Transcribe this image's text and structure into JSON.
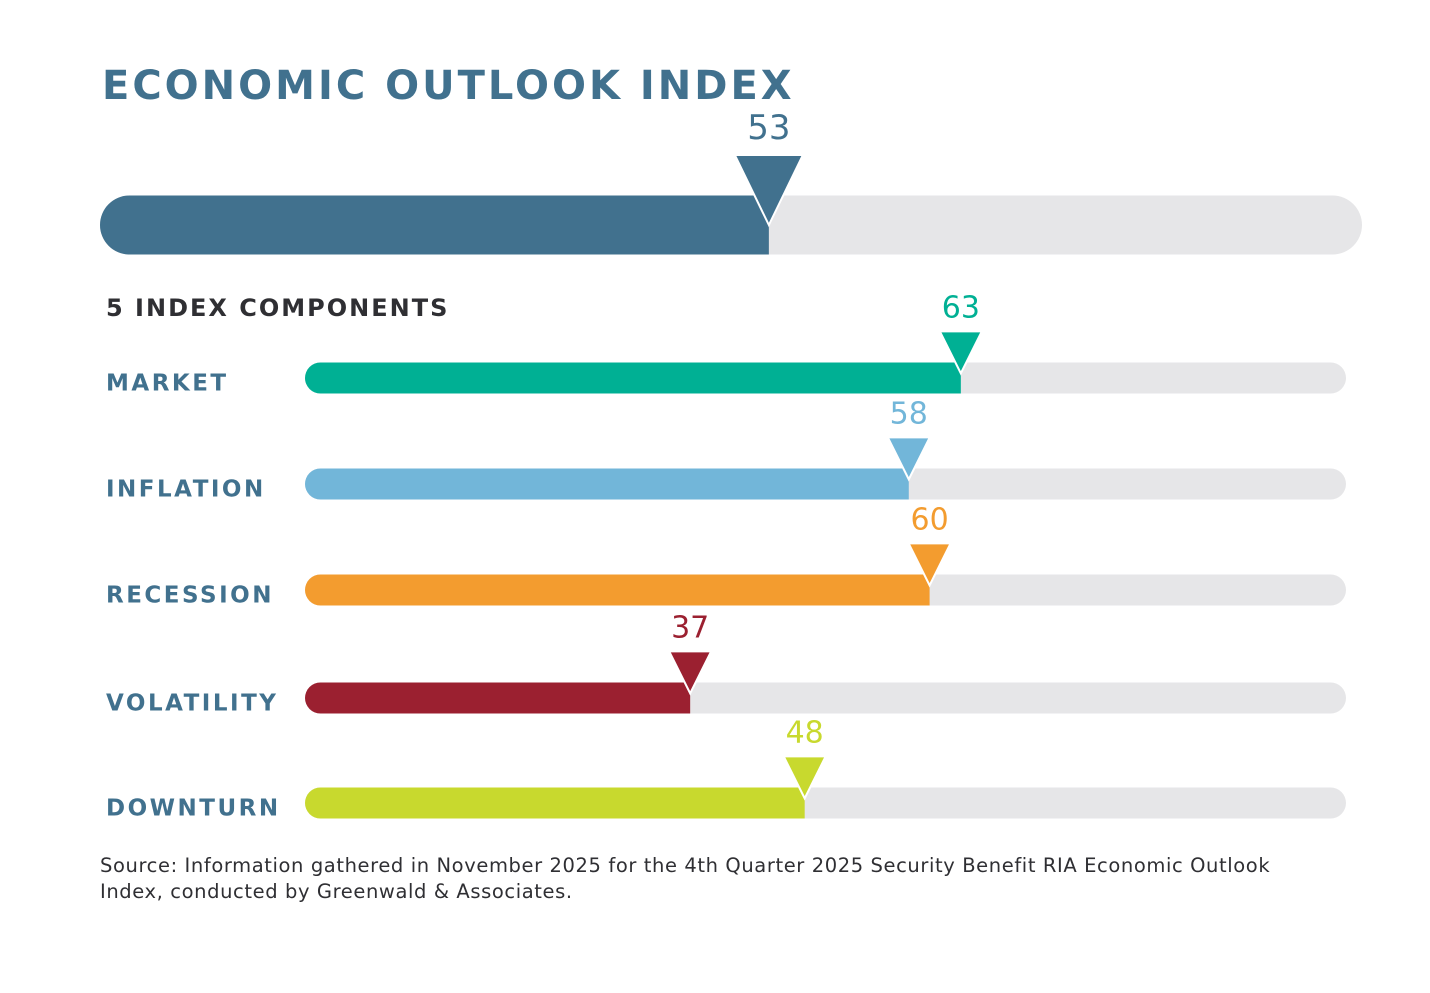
{
  "chart_data": [
    {
      "type": "progress",
      "title": "ECONOMIC OUTLOOK INDEX",
      "values": [
        53
      ],
      "colors": [
        "#41718e"
      ],
      "track_color": "#e6e6e8",
      "xlim": [
        0,
        100
      ]
    },
    {
      "type": "progress",
      "title": "5 INDEX COMPONENTS",
      "categories": [
        "MARKET",
        "INFLATION",
        "RECESSION",
        "VOLATILITY",
        "DOWNTURN"
      ],
      "values": [
        63,
        58,
        60,
        37,
        48
      ],
      "colors": [
        "#00b094",
        "#72b6d9",
        "#f39c2f",
        "#9b2030",
        "#c8d92e"
      ],
      "track_color": "#e6e6e8",
      "xlim": [
        0,
        100
      ]
    }
  ],
  "source": "Source: Information gathered in November 2025 for the 4th Quarter 2025 Security Benefit RIA Economic Outlook Index, conducted by Greenwald & Associates."
}
